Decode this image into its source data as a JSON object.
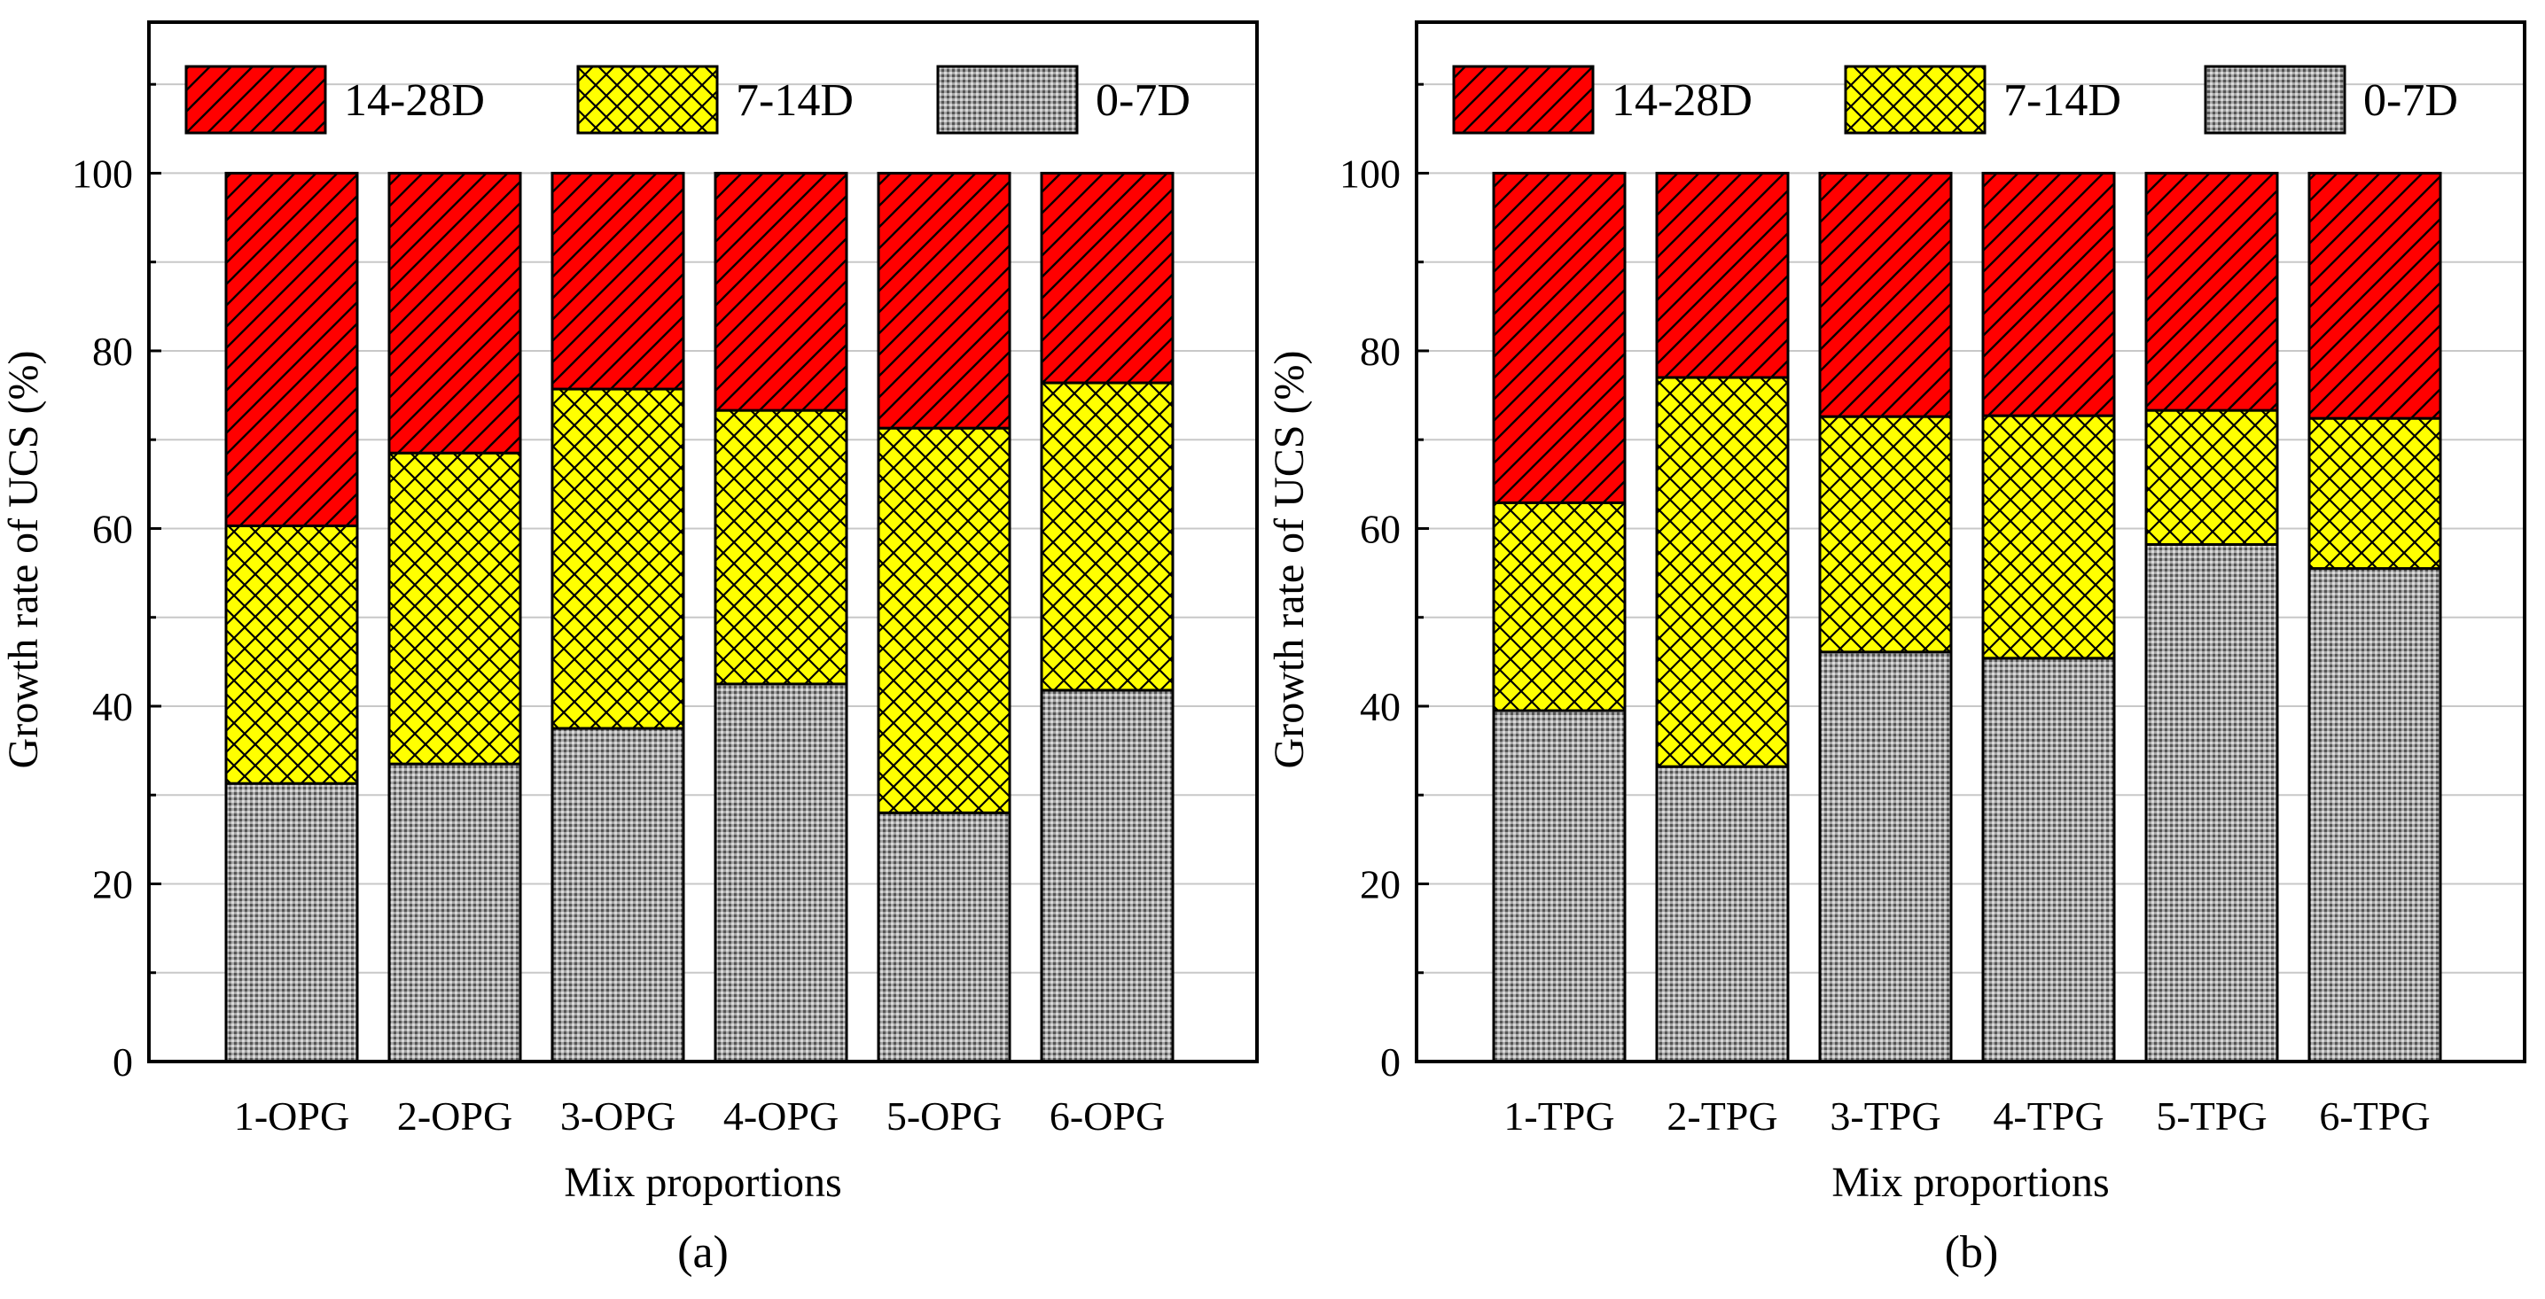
{
  "colors": {
    "series_14_28": "#ff0000",
    "series_7_14": "#ffff00",
    "series_0_7": "#a6a6a6",
    "axis": "#000000",
    "gridline": "#c8c8c8"
  },
  "chart_data": [
    {
      "type": "bar",
      "stacked": true,
      "panel_label": "(a)",
      "title": "",
      "xlabel": "Mix proportions",
      "ylabel": "Growth rate of UCS (%)",
      "ylim": [
        0,
        117
      ],
      "yticks": [
        "0",
        "20",
        "40",
        "60",
        "80",
        "100"
      ],
      "grid": true,
      "legend_position": "top",
      "categories": [
        "1-OPG",
        "2-OPG",
        "3-OPG",
        "4-OPG",
        "5-OPG",
        "6-OPG"
      ],
      "legend_order": [
        "14-28D",
        "7-14D",
        "0-7D"
      ],
      "series": [
        {
          "name": "0-7D",
          "pattern": "dots",
          "values": [
            31.3,
            33.5,
            37.5,
            42.5,
            28.0,
            41.8
          ]
        },
        {
          "name": "7-14D",
          "pattern": "crosshatch",
          "values": [
            29.0,
            35.0,
            38.2,
            30.8,
            43.3,
            34.6
          ]
        },
        {
          "name": "14-28D",
          "pattern": "diagonal",
          "values": [
            39.7,
            31.5,
            24.3,
            26.7,
            28.7,
            23.6
          ]
        }
      ]
    },
    {
      "type": "bar",
      "stacked": true,
      "panel_label": "(b)",
      "title": "",
      "xlabel": "Mix proportions",
      "ylabel": "Growth rate of UCS (%)",
      "ylim": [
        0,
        117
      ],
      "yticks": [
        "0",
        "20",
        "40",
        "60",
        "80",
        "100"
      ],
      "grid": true,
      "legend_position": "top",
      "categories": [
        "1-TPG",
        "2-TPG",
        "3-TPG",
        "4-TPG",
        "5-TPG",
        "6-TPG"
      ],
      "legend_order": [
        "14-28D",
        "7-14D",
        "0-7D"
      ],
      "series": [
        {
          "name": "0-7D",
          "pattern": "dots",
          "values": [
            39.5,
            33.2,
            46.1,
            45.4,
            58.2,
            55.5
          ]
        },
        {
          "name": "7-14D",
          "pattern": "crosshatch",
          "values": [
            23.4,
            43.8,
            26.5,
            27.3,
            15.1,
            16.9
          ]
        },
        {
          "name": "14-28D",
          "pattern": "diagonal",
          "values": [
            37.1,
            23.0,
            27.4,
            27.3,
            26.7,
            27.6
          ]
        }
      ]
    }
  ]
}
